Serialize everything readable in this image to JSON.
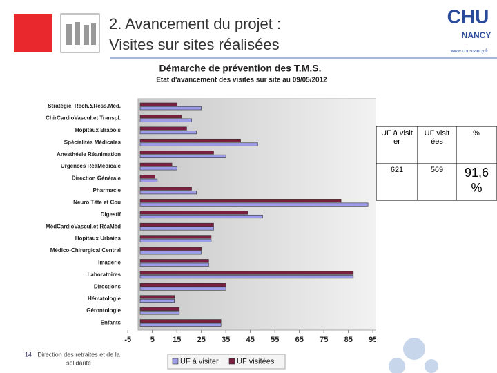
{
  "slide": {
    "title_line1": "2. Avancement du projet :",
    "title_line2": "Visites sur sites réalisées",
    "logo_main": "CHU",
    "logo_sub": "NANCY",
    "logo_url": "www.chu-nancy.fr",
    "page_number": "14",
    "footer_line1": "Direction des retraites et de la",
    "footer_line2": "solidarité",
    "table": {
      "headers": [
        "UF à visiter",
        "UF visitées",
        "%"
      ],
      "row": [
        "621",
        "569",
        "91,6 %"
      ]
    }
  },
  "chart_data": {
    "type": "hbar",
    "title": "Démarche de prévention des T.M.S.",
    "subtitle": "Etat d'avancement des visites sur site au 09/05/2012",
    "categories": [
      "Stratégie, Rech.&Ress.Méd.",
      "ChirCardioVascul.et Transpl.",
      "Hopitaux Brabois",
      "Spécialités Médicales",
      "Anesthésie Réanimation",
      "Urgences RéaMédicale",
      "Direction Générale",
      "Pharmacie",
      "Neuro Tête et Cou",
      "Digestif",
      "MédCardioVascul.et RéaMéd",
      "Hopitaux Urbains",
      "Médico-Chirurgical Central",
      "Imagerie",
      "Laboratoires",
      "Directions",
      "Hématologie",
      "Gérontologie",
      "Enfants"
    ],
    "series": [
      {
        "name": "UF à visiter",
        "color": "#9c9ce8",
        "values": [
          25,
          21,
          23,
          48,
          35,
          15,
          7,
          23,
          93,
          50,
          30,
          29,
          25,
          28,
          87,
          35,
          14,
          16,
          33
        ]
      },
      {
        "name": "UF visitées",
        "color": "#7a1f40",
        "values": [
          15,
          17,
          19,
          41,
          30,
          13,
          6,
          21,
          82,
          44,
          30,
          29,
          25,
          28,
          87,
          35,
          14,
          16,
          33
        ]
      }
    ],
    "xlim": [
      -5,
      95
    ],
    "xticks": [
      -5,
      5,
      15,
      25,
      35,
      45,
      55,
      65,
      75,
      85,
      95
    ],
    "grid": false,
    "legend": "bottom"
  }
}
